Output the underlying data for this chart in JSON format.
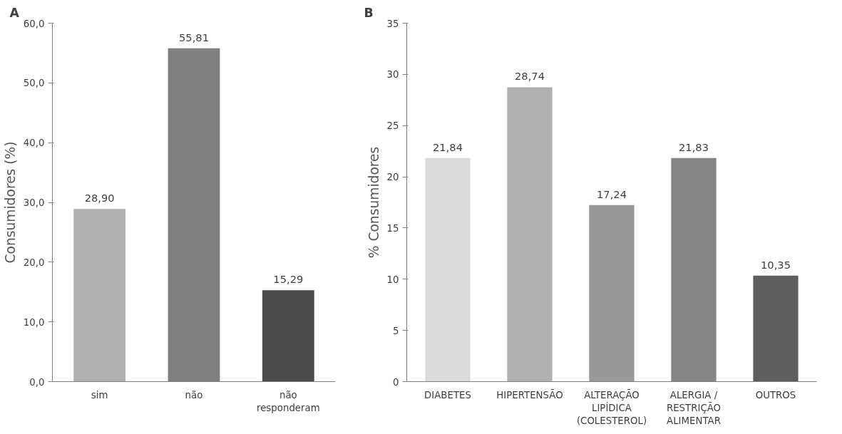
{
  "chart_data": [
    {
      "type": "bar",
      "title": "A",
      "ylabel": "Consumidores (%)",
      "categories": [
        "sim",
        "não",
        "não\nresponderam"
      ],
      "values": [
        28.9,
        55.81,
        15.29
      ],
      "colors": [
        "#b0b0b0",
        "#808080",
        "#4a4a4a"
      ],
      "value_labels": [
        "28,90",
        "55,81",
        "15,29"
      ],
      "ylim": [
        0,
        60
      ],
      "yticks": [
        {
          "value": 0,
          "label": "0,0"
        },
        {
          "value": 10,
          "label": "10,0"
        },
        {
          "value": 20,
          "label": "20,0"
        },
        {
          "value": 30,
          "label": "30,0"
        },
        {
          "value": 40,
          "label": "40,0"
        },
        {
          "value": 50,
          "label": "50,0"
        },
        {
          "value": 60,
          "label": "60,0"
        }
      ],
      "grid": false
    },
    {
      "type": "bar",
      "title": "B",
      "ylabel": "% Consumidores",
      "categories": [
        "DIABETES",
        "HIPERTENSÃO",
        "ALTERAÇÃO\nLIPÍDICA\n(COLESTEROL)",
        "ALERGIA /\nRESTRIÇÃO\nALIMENTAR",
        "OUTROS"
      ],
      "values": [
        21.84,
        28.74,
        17.24,
        21.83,
        10.35
      ],
      "colors": [
        "#dcdcdc",
        "#b0b0b0",
        "#999999",
        "#858585",
        "#5f5f5f"
      ],
      "value_labels": [
        "21,84",
        "28,74",
        "17,24",
        "21,83",
        "10,35"
      ],
      "ylim": [
        0,
        35
      ],
      "yticks": [
        0,
        5,
        10,
        15,
        20,
        25,
        30,
        35
      ],
      "grid": false
    }
  ]
}
